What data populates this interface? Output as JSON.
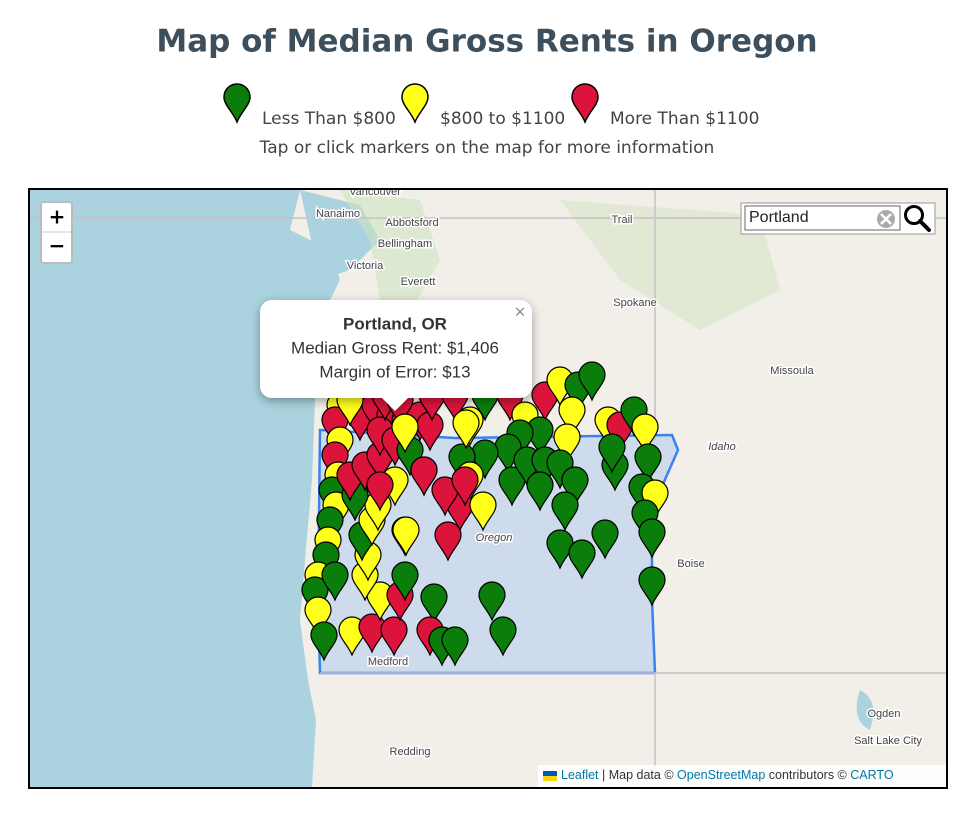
{
  "header": {
    "title": "Map of Median Gross Rents in Oregon",
    "legend": [
      {
        "label": "Less Than $800",
        "color": "#0a7d0a"
      },
      {
        "label": "$800 to $1100",
        "color": "#ffff1a"
      },
      {
        "label": "More Than $1100",
        "color": "#dc143c"
      }
    ],
    "instruction": "Tap or click markers on the map for more information"
  },
  "map": {
    "zoom_in": "+",
    "zoom_out": "−",
    "search": {
      "value": "Portland"
    },
    "popup": {
      "title": "Portland, OR",
      "lines": [
        "Median Gross Rent: $1,406",
        "Margin of Error: $13"
      ],
      "close": "×"
    },
    "places": [
      "Vancouver",
      "Nanaimo",
      "Abbotsford",
      "Bellingham",
      "Victoria",
      "Everett",
      "Trail",
      "Spokane",
      "Missoula",
      "Idaho",
      "Oregon",
      "Boise",
      "Medford",
      "Redding",
      "Ogden",
      "Salt Lake City"
    ],
    "attribution": {
      "leaflet": "Leaflet",
      "text1": "| Map data ©",
      "osm": "OpenStreetMap",
      "text2": "contributors ©",
      "carto": "CARTO"
    }
  }
}
